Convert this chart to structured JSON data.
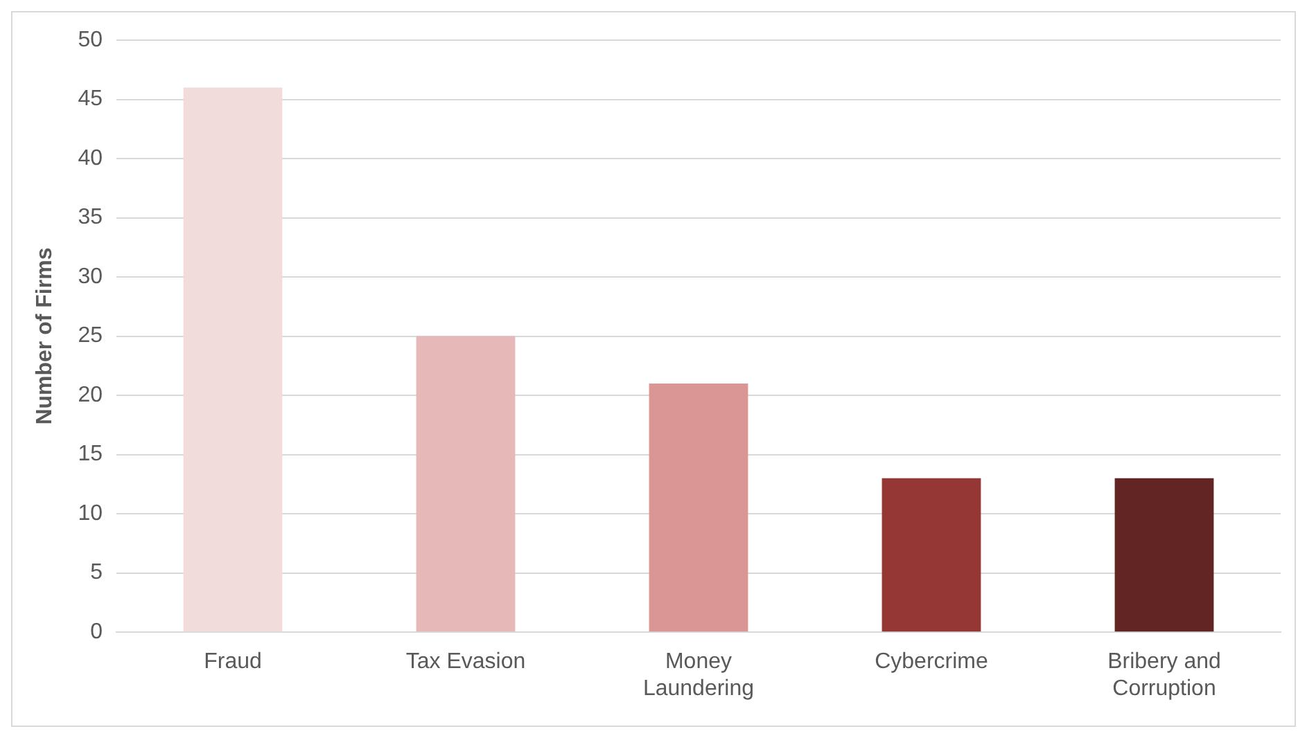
{
  "chart_data": {
    "type": "bar",
    "ylabel": "Number of Firms",
    "categories": [
      "Fraud",
      "Tax Evasion",
      "Money Laundering",
      "Cybercrime",
      "Bribery and Corruption"
    ],
    "values": [
      46,
      25,
      21,
      13,
      13
    ],
    "colors": [
      "#f2dcdb",
      "#e6b9b8",
      "#d99694",
      "#953735",
      "#632523"
    ],
    "ylim": [
      0,
      50
    ],
    "yticks": [
      0,
      5,
      10,
      15,
      20,
      25,
      30,
      35,
      40,
      45,
      50
    ],
    "grid": "y",
    "legend": false
  }
}
